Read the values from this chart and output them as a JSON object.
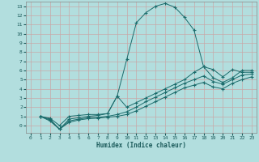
{
  "xlabel": "Humidex (Indice chaleur)",
  "xlim": [
    -0.5,
    23.5
  ],
  "ylim": [
    -0.8,
    13.5
  ],
  "xticks": [
    0,
    1,
    2,
    3,
    4,
    5,
    6,
    7,
    8,
    9,
    10,
    11,
    12,
    13,
    14,
    15,
    16,
    17,
    18,
    19,
    20,
    21,
    22,
    23
  ],
  "yticks": [
    0,
    1,
    2,
    3,
    4,
    5,
    6,
    7,
    8,
    9,
    10,
    11,
    12,
    13
  ],
  "background_color": "#b2dede",
  "grid_color": "#c8a8a8",
  "line_color": "#1a6b6b",
  "lines": [
    {
      "x": [
        1,
        2,
        3,
        4,
        5,
        6,
        7,
        8,
        9,
        10,
        11,
        12,
        13,
        14,
        15,
        16,
        17,
        18,
        19,
        20,
        21,
        22,
        23
      ],
      "y": [
        1.0,
        0.8,
        0.0,
        1.0,
        1.1,
        1.2,
        1.2,
        1.3,
        3.2,
        7.2,
        11.2,
        12.3,
        13.0,
        13.3,
        12.9,
        11.8,
        10.4,
        6.4,
        6.1,
        5.3,
        6.1,
        5.8,
        5.8
      ],
      "markers": true
    },
    {
      "x": [
        1,
        2,
        3,
        4,
        5,
        6,
        7,
        8,
        9,
        10,
        11,
        12,
        13,
        14,
        15,
        16,
        17,
        18,
        19,
        20,
        21,
        22,
        23
      ],
      "y": [
        1.0,
        0.7,
        -0.4,
        0.7,
        0.85,
        1.0,
        1.1,
        1.3,
        3.2,
        2.0,
        2.5,
        3.0,
        3.5,
        4.0,
        4.5,
        5.0,
        5.8,
        6.4,
        5.2,
        4.7,
        5.2,
        6.0,
        6.0
      ],
      "markers": true
    },
    {
      "x": [
        1,
        2,
        3,
        4,
        5,
        6,
        7,
        8,
        9,
        10,
        11,
        12,
        13,
        14,
        15,
        16,
        17,
        18,
        19,
        20,
        21,
        22,
        23
      ],
      "y": [
        1.0,
        0.6,
        -0.4,
        0.5,
        0.7,
        0.85,
        0.9,
        1.0,
        1.2,
        1.5,
        2.0,
        2.6,
        3.1,
        3.6,
        4.1,
        4.6,
        5.0,
        5.4,
        4.8,
        4.5,
        5.0,
        5.5,
        5.6
      ],
      "markers": true
    },
    {
      "x": [
        1,
        2,
        3,
        4,
        5,
        6,
        7,
        8,
        9,
        10,
        11,
        12,
        13,
        14,
        15,
        16,
        17,
        18,
        19,
        20,
        21,
        22,
        23
      ],
      "y": [
        1.0,
        0.5,
        -0.4,
        0.35,
        0.6,
        0.75,
        0.8,
        0.9,
        1.0,
        1.2,
        1.6,
        2.1,
        2.6,
        3.1,
        3.6,
        4.1,
        4.4,
        4.7,
        4.2,
        4.0,
        4.6,
        5.0,
        5.3
      ],
      "markers": true
    }
  ]
}
